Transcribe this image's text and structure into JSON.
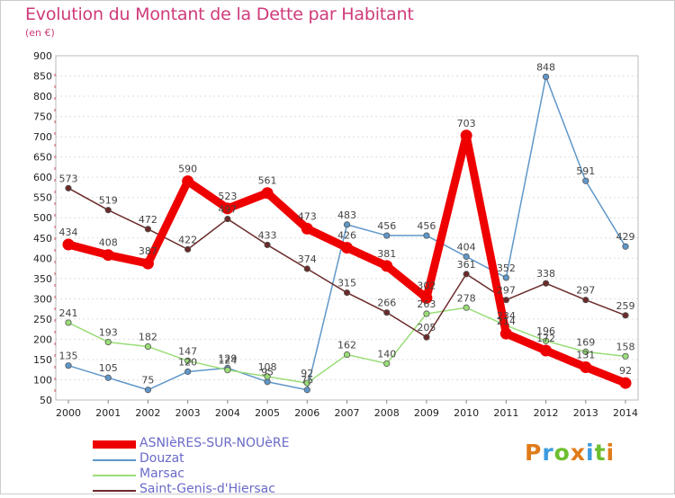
{
  "header": {
    "title": "Evolution du Montant de la Dette par Habitant",
    "unit": "(en €)"
  },
  "logo": {
    "text": "Proxiti",
    "colors": [
      "#e07b1a",
      "#3c9be0",
      "#6cbf2e",
      "#e07b1a",
      "#3c9be0",
      "#6cbf2e",
      "#e07b1a"
    ]
  },
  "chart_data": {
    "type": "line",
    "title": "Evolution du Montant de la Dette par Habitant",
    "subtitle": "(en €)",
    "xlabel": "",
    "ylabel": "",
    "x": [
      "2000",
      "2001",
      "2002",
      "2003",
      "2004",
      "2005",
      "2006",
      "2007",
      "2008",
      "2009",
      "2010",
      "2011",
      "2012",
      "2013",
      "2014"
    ],
    "yticks": [
      50,
      100,
      150,
      200,
      250,
      300,
      350,
      400,
      450,
      500,
      550,
      600,
      650,
      700,
      750,
      800,
      850,
      900
    ],
    "ylim": [
      50,
      900
    ],
    "grid": "horizontal dotted",
    "legend_position": "bottom-left",
    "series": [
      {
        "name": "ASNIèRES-SUR-NOUèRE",
        "color": "#ee0000",
        "emphasis": true,
        "values": [
          434,
          408,
          387,
          590,
          523,
          561,
          473,
          426,
          381,
          302,
          703,
          214,
          172,
          131,
          92
        ]
      },
      {
        "name": "Douzat",
        "color": "#5f97c9",
        "emphasis": false,
        "values": [
          135,
          105,
          75,
          120,
          129,
          95,
          75,
          483,
          456,
          456,
          404,
          352,
          848,
          591,
          429
        ]
      },
      {
        "name": "Marsac",
        "color": "#99dd77",
        "emphasis": false,
        "values": [
          241,
          193,
          182,
          147,
          124,
          108,
          92,
          162,
          140,
          263,
          278,
          234,
          196,
          169,
          158
        ]
      },
      {
        "name": "Saint-Genis-d'Hiersac",
        "color": "#6b2a2a",
        "emphasis": false,
        "values": [
          573,
          519,
          472,
          422,
          497,
          433,
          374,
          315,
          266,
          205,
          361,
          297,
          338,
          297,
          259
        ]
      }
    ]
  }
}
